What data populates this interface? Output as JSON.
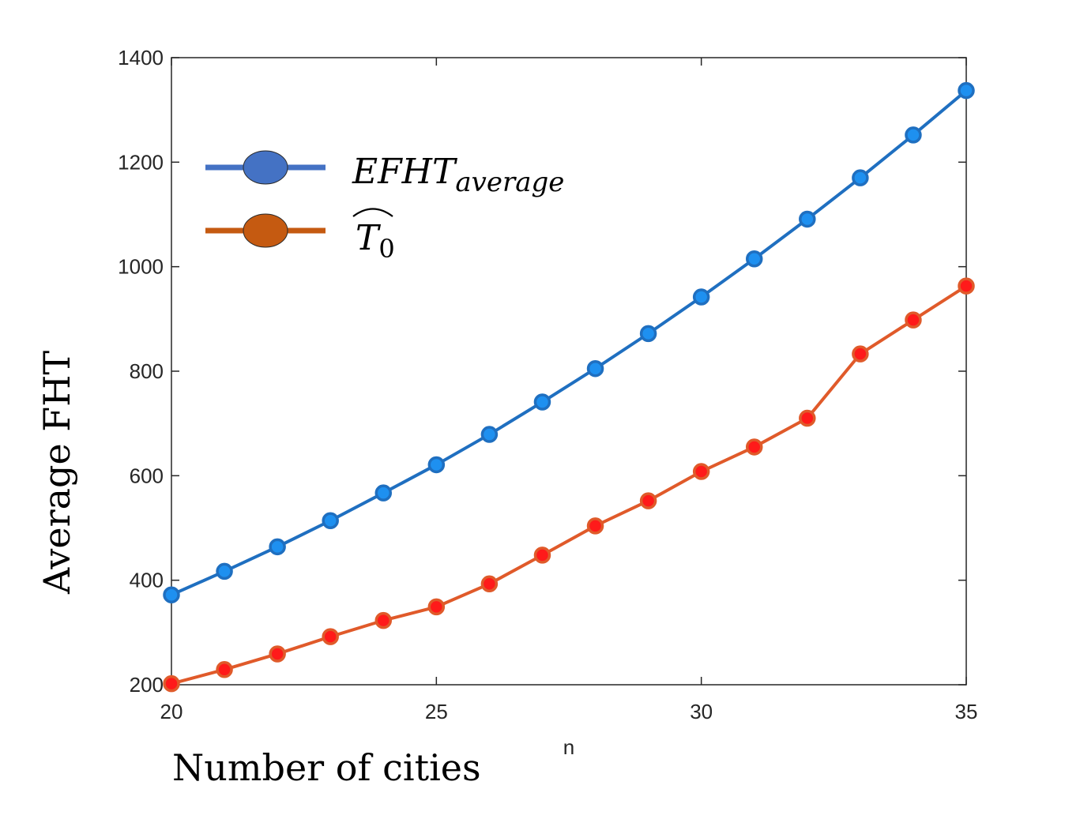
{
  "chart_data": {
    "type": "line",
    "title": "",
    "xlabel": "n",
    "xlabel_caption": "Number of cities",
    "ylabel": "Average FHT",
    "xlim": [
      20,
      35
    ],
    "ylim": [
      200,
      1400
    ],
    "xticks": [
      20,
      25,
      30,
      35
    ],
    "yticks": [
      200,
      400,
      600,
      800,
      1000,
      1200,
      1400
    ],
    "grid": false,
    "legend_position": "top-left",
    "x": [
      20,
      21,
      22,
      23,
      24,
      25,
      26,
      27,
      28,
      29,
      30,
      31,
      32,
      33,
      34,
      35
    ],
    "series": [
      {
        "name": "EFHT",
        "name_subscript": "average",
        "color": "#1f6fc0",
        "marker_color": "#1e90f0",
        "legend_color": "#4472c4",
        "values": [
          372,
          417,
          464,
          514,
          567,
          621,
          679,
          741,
          805,
          872,
          942,
          1015,
          1091,
          1170,
          1252,
          1337
        ]
      },
      {
        "name": "T",
        "name_subscript": "0",
        "name_accent": "hat",
        "color": "#e05a2a",
        "marker_color": "#ff1a1a",
        "legend_color": "#c55a11",
        "values": [
          202,
          229,
          259,
          292,
          323,
          349,
          393,
          448,
          504,
          552,
          608,
          655,
          710,
          833,
          898,
          963
        ]
      }
    ]
  }
}
